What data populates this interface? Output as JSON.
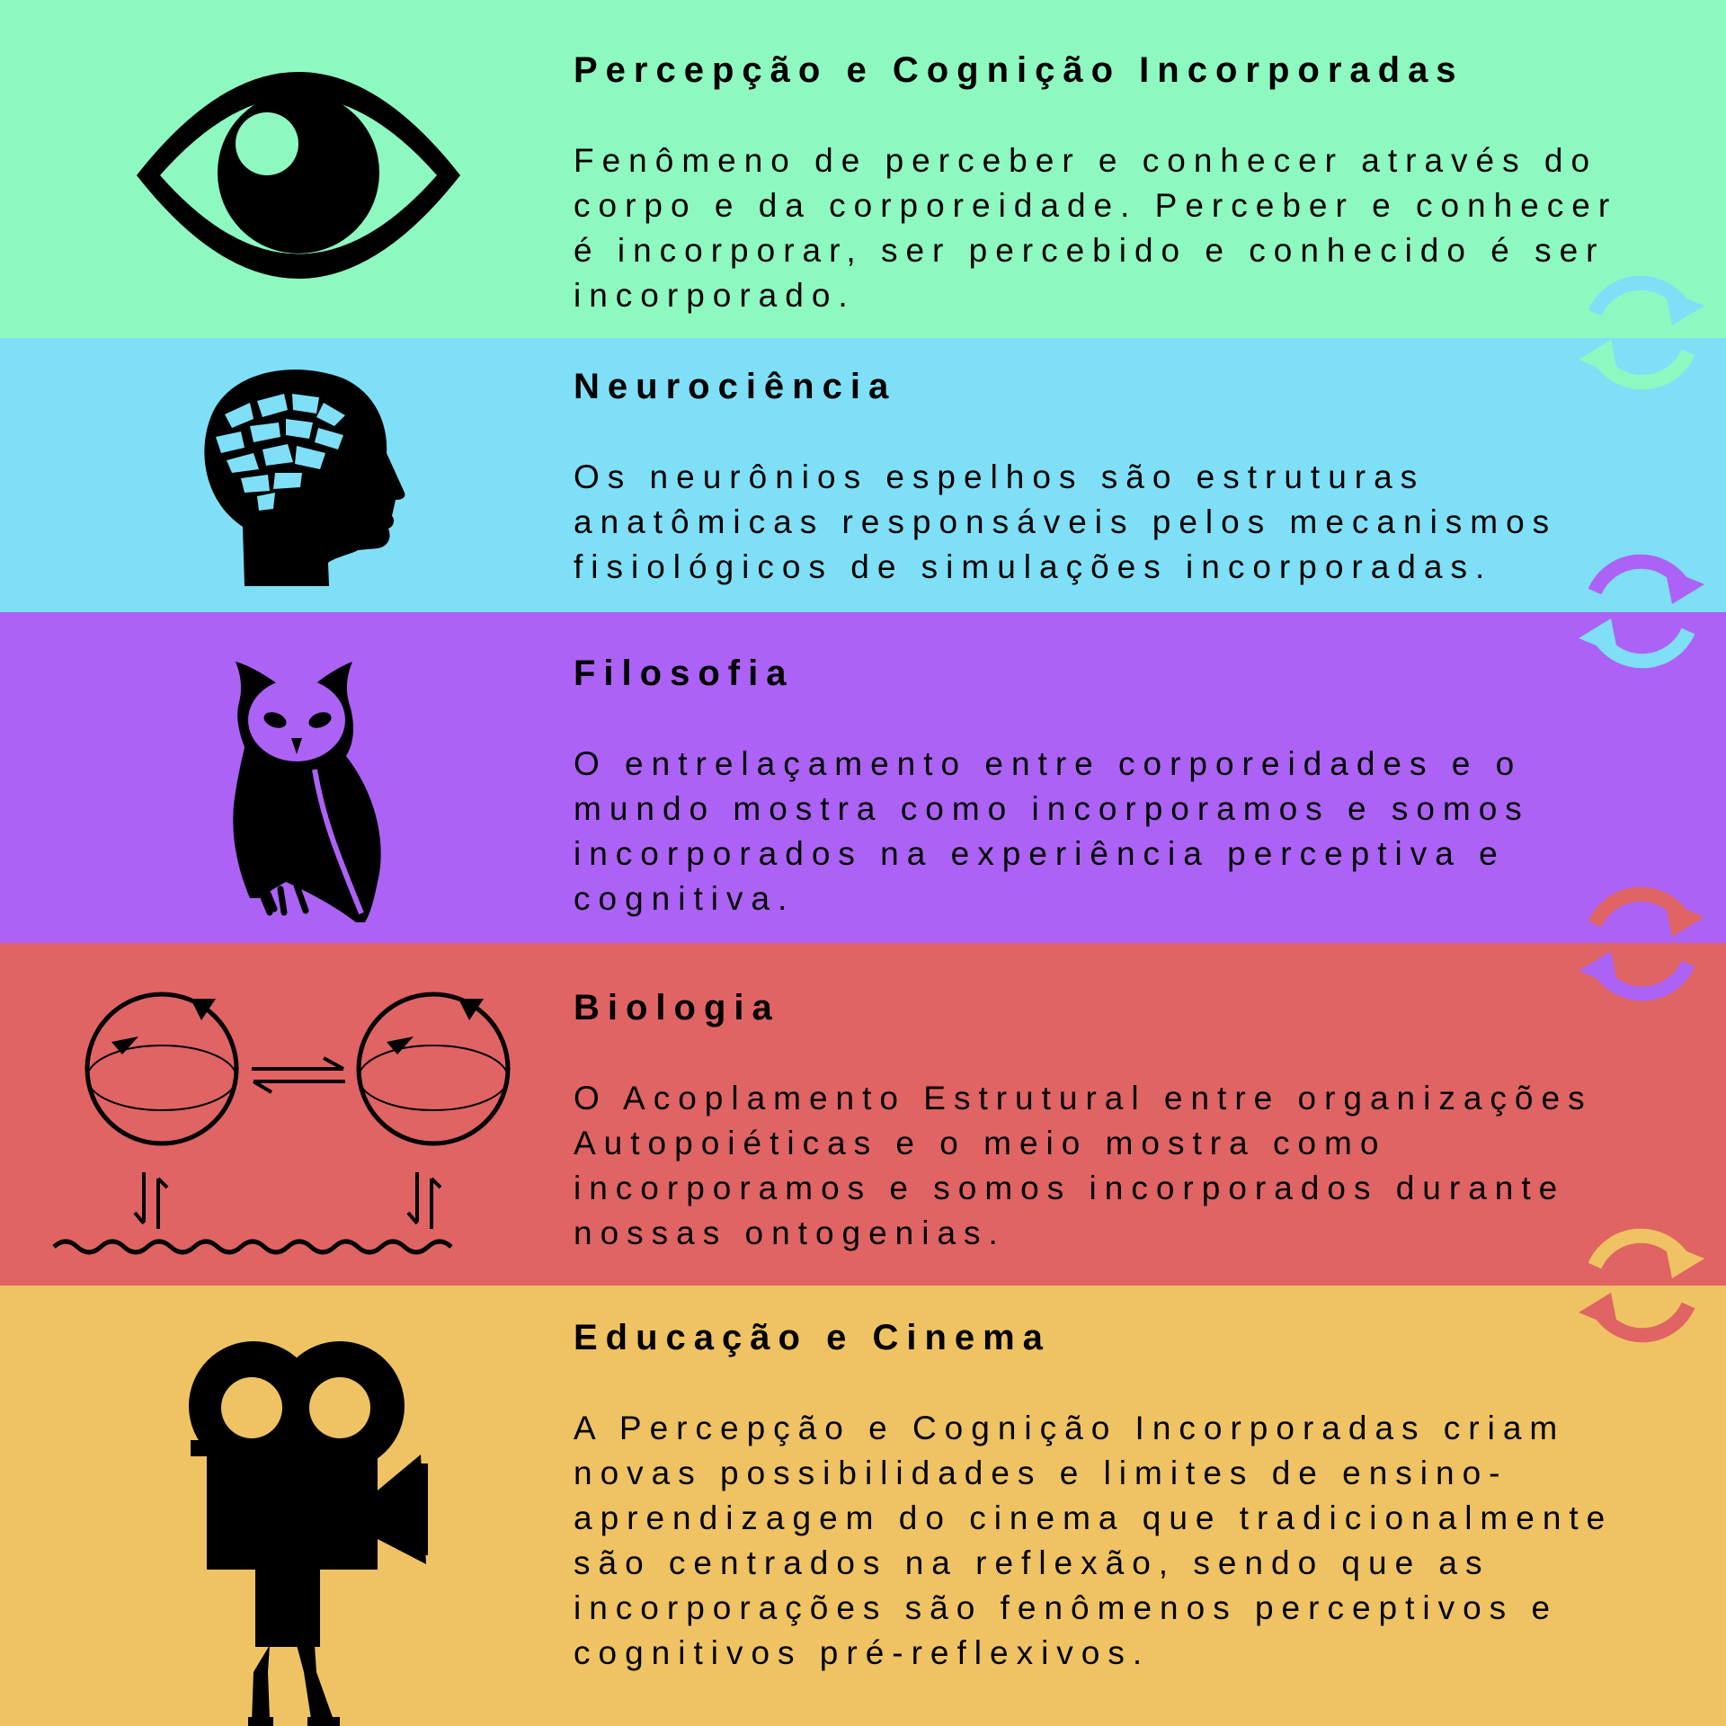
{
  "colors": {
    "mint": "#8ef8c1",
    "sky": "#7fdff7",
    "violet": "#ad62f6",
    "coral": "#e06464",
    "amber": "#efc363",
    "ink": "#000000"
  },
  "sections": [
    {
      "icon": "eye-icon",
      "title": "Percepção e Cognição Incorporadas",
      "description": "Fenômeno de perceber e conhecer através do corpo e da corporeidade. Perceber e conhecer é incorporar, ser percebido e conhecido é ser incorporado."
    },
    {
      "icon": "brain-head-icon",
      "title": "Neurociência",
      "description": "Os neurônios espelhos são estruturas anatômicas responsáveis pelos mecanismos fisiológicos de simulações incorporadas."
    },
    {
      "icon": "owl-icon",
      "title": "Filosofia",
      "description": "O entrelaçamento entre corporeidades e o mundo mostra como incorporamos e somos incorporados na experiência perceptiva e cognitiva."
    },
    {
      "icon": "structural-coupling-icon",
      "title": "Biologia",
      "description": "O Acoplamento Estrutural entre organizações Autopoiéticas e o meio mostra como incorporamos e somos incorporados durante nossas ontogenias."
    },
    {
      "icon": "film-camera-icon",
      "title": "Educação e Cinema",
      "description": "A Percepção e Cognição Incorporadas criam novas possibilidades e limites de ensino-aprendizagem do cinema que tradicionalmente são centrados na reflexão, sendo que as incorporações são fenômenos perceptivos e cognitivos pré-reflexivos."
    }
  ],
  "connectors": [
    {
      "icon": "cycle-arrows-icon",
      "top_color": "#7fdff7",
      "bottom_color": "#8ef8c1"
    },
    {
      "icon": "cycle-arrows-icon",
      "top_color": "#ad62f6",
      "bottom_color": "#7fdff7"
    },
    {
      "icon": "cycle-arrows-icon",
      "top_color": "#e06464",
      "bottom_color": "#ad62f6"
    },
    {
      "icon": "cycle-arrows-icon",
      "top_color": "#efc363",
      "bottom_color": "#e06464"
    }
  ]
}
